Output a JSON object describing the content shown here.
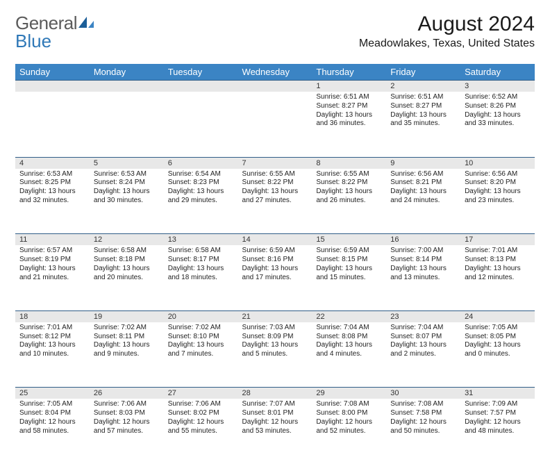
{
  "logo": {
    "general": "General",
    "blue": "Blue"
  },
  "header": {
    "month": "August 2024",
    "location": "Meadowlakes, Texas, United States"
  },
  "colors": {
    "header_bg": "#3b84c4",
    "header_text": "#ffffff",
    "daynum_bg": "#e8e8e8",
    "row_border": "#2f5c87",
    "logo_gray": "#5b5b5b",
    "logo_blue": "#2f78b7"
  },
  "daysOfWeek": [
    "Sunday",
    "Monday",
    "Tuesday",
    "Wednesday",
    "Thursday",
    "Friday",
    "Saturday"
  ],
  "weeks": [
    [
      {},
      {},
      {},
      {},
      {
        "n": "1",
        "sr": "6:51 AM",
        "ss": "8:27 PM",
        "dl": "13 hours and 36 minutes."
      },
      {
        "n": "2",
        "sr": "6:51 AM",
        "ss": "8:27 PM",
        "dl": "13 hours and 35 minutes."
      },
      {
        "n": "3",
        "sr": "6:52 AM",
        "ss": "8:26 PM",
        "dl": "13 hours and 33 minutes."
      }
    ],
    [
      {
        "n": "4",
        "sr": "6:53 AM",
        "ss": "8:25 PM",
        "dl": "13 hours and 32 minutes."
      },
      {
        "n": "5",
        "sr": "6:53 AM",
        "ss": "8:24 PM",
        "dl": "13 hours and 30 minutes."
      },
      {
        "n": "6",
        "sr": "6:54 AM",
        "ss": "8:23 PM",
        "dl": "13 hours and 29 minutes."
      },
      {
        "n": "7",
        "sr": "6:55 AM",
        "ss": "8:22 PM",
        "dl": "13 hours and 27 minutes."
      },
      {
        "n": "8",
        "sr": "6:55 AM",
        "ss": "8:22 PM",
        "dl": "13 hours and 26 minutes."
      },
      {
        "n": "9",
        "sr": "6:56 AM",
        "ss": "8:21 PM",
        "dl": "13 hours and 24 minutes."
      },
      {
        "n": "10",
        "sr": "6:56 AM",
        "ss": "8:20 PM",
        "dl": "13 hours and 23 minutes."
      }
    ],
    [
      {
        "n": "11",
        "sr": "6:57 AM",
        "ss": "8:19 PM",
        "dl": "13 hours and 21 minutes."
      },
      {
        "n": "12",
        "sr": "6:58 AM",
        "ss": "8:18 PM",
        "dl": "13 hours and 20 minutes."
      },
      {
        "n": "13",
        "sr": "6:58 AM",
        "ss": "8:17 PM",
        "dl": "13 hours and 18 minutes."
      },
      {
        "n": "14",
        "sr": "6:59 AM",
        "ss": "8:16 PM",
        "dl": "13 hours and 17 minutes."
      },
      {
        "n": "15",
        "sr": "6:59 AM",
        "ss": "8:15 PM",
        "dl": "13 hours and 15 minutes."
      },
      {
        "n": "16",
        "sr": "7:00 AM",
        "ss": "8:14 PM",
        "dl": "13 hours and 13 minutes."
      },
      {
        "n": "17",
        "sr": "7:01 AM",
        "ss": "8:13 PM",
        "dl": "13 hours and 12 minutes."
      }
    ],
    [
      {
        "n": "18",
        "sr": "7:01 AM",
        "ss": "8:12 PM",
        "dl": "13 hours and 10 minutes."
      },
      {
        "n": "19",
        "sr": "7:02 AM",
        "ss": "8:11 PM",
        "dl": "13 hours and 9 minutes."
      },
      {
        "n": "20",
        "sr": "7:02 AM",
        "ss": "8:10 PM",
        "dl": "13 hours and 7 minutes."
      },
      {
        "n": "21",
        "sr": "7:03 AM",
        "ss": "8:09 PM",
        "dl": "13 hours and 5 minutes."
      },
      {
        "n": "22",
        "sr": "7:04 AM",
        "ss": "8:08 PM",
        "dl": "13 hours and 4 minutes."
      },
      {
        "n": "23",
        "sr": "7:04 AM",
        "ss": "8:07 PM",
        "dl": "13 hours and 2 minutes."
      },
      {
        "n": "24",
        "sr": "7:05 AM",
        "ss": "8:05 PM",
        "dl": "13 hours and 0 minutes."
      }
    ],
    [
      {
        "n": "25",
        "sr": "7:05 AM",
        "ss": "8:04 PM",
        "dl": "12 hours and 58 minutes."
      },
      {
        "n": "26",
        "sr": "7:06 AM",
        "ss": "8:03 PM",
        "dl": "12 hours and 57 minutes."
      },
      {
        "n": "27",
        "sr": "7:06 AM",
        "ss": "8:02 PM",
        "dl": "12 hours and 55 minutes."
      },
      {
        "n": "28",
        "sr": "7:07 AM",
        "ss": "8:01 PM",
        "dl": "12 hours and 53 minutes."
      },
      {
        "n": "29",
        "sr": "7:08 AM",
        "ss": "8:00 PM",
        "dl": "12 hours and 52 minutes."
      },
      {
        "n": "30",
        "sr": "7:08 AM",
        "ss": "7:58 PM",
        "dl": "12 hours and 50 minutes."
      },
      {
        "n": "31",
        "sr": "7:09 AM",
        "ss": "7:57 PM",
        "dl": "12 hours and 48 minutes."
      }
    ]
  ],
  "labels": {
    "sunrise": "Sunrise: ",
    "sunset": "Sunset: ",
    "daylight": "Daylight: "
  }
}
